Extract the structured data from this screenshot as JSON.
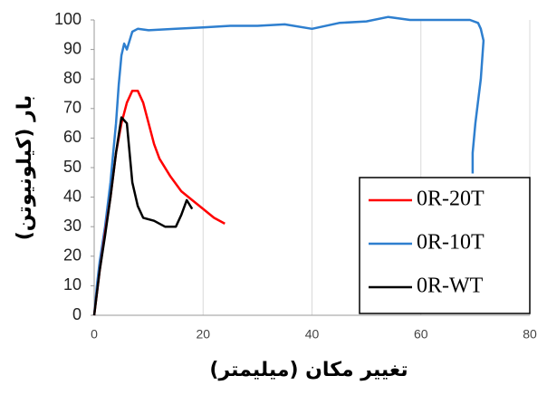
{
  "chart_data": {
    "type": "line",
    "x_label": "تغییر مکان (میلیمتر)",
    "y_label": "بار (کیلونیوتن)",
    "xlim": [
      0,
      80
    ],
    "xticks": [
      0,
      20,
      40,
      60,
      80
    ],
    "ylim": [
      0,
      100
    ],
    "yticks": [
      0,
      10,
      20,
      30,
      40,
      50,
      60,
      70,
      80,
      90,
      100
    ],
    "grid": "x",
    "legend": "lower right",
    "series": [
      {
        "name": "0R-20T",
        "color": "#ff0000",
        "x": [
          0,
          1,
          2,
          3,
          4,
          5,
          6,
          7,
          8,
          9,
          10,
          11,
          12,
          14,
          16,
          18,
          20,
          22,
          24
        ],
        "values": [
          0,
          15,
          28,
          40,
          55,
          65,
          72,
          76,
          76,
          72,
          65,
          58,
          53,
          47,
          42,
          39,
          36,
          33,
          31
        ]
      },
      {
        "name": "0R-10T",
        "color": "#2e7fcf",
        "x": [
          0,
          0.5,
          1,
          2,
          3,
          3.5,
          4,
          4.5,
          5,
          5.5,
          6,
          7,
          8,
          10,
          15,
          20,
          25,
          30,
          35,
          40,
          45,
          50,
          54,
          58,
          62,
          66,
          69,
          70.5,
          71,
          71.5,
          71,
          70,
          69.5,
          69.5
        ],
        "values": [
          0,
          10,
          18,
          30,
          45,
          55,
          65,
          78,
          88,
          92,
          90,
          96,
          97,
          96.5,
          97,
          97.5,
          98,
          98,
          98.5,
          97,
          99,
          99.5,
          101,
          100,
          100,
          100,
          100,
          99,
          97,
          93,
          80,
          65,
          55,
          48
        ]
      },
      {
        "name": "0R-WT",
        "color": "#000000",
        "x": [
          0,
          1,
          2,
          3,
          4,
          5,
          6,
          6.5,
          7,
          8,
          9,
          11,
          13,
          15,
          16,
          17,
          18
        ],
        "values": [
          0,
          15,
          27,
          40,
          55,
          67,
          65,
          55,
          45,
          37,
          33,
          32,
          30,
          30,
          34,
          39,
          36
        ]
      }
    ]
  }
}
